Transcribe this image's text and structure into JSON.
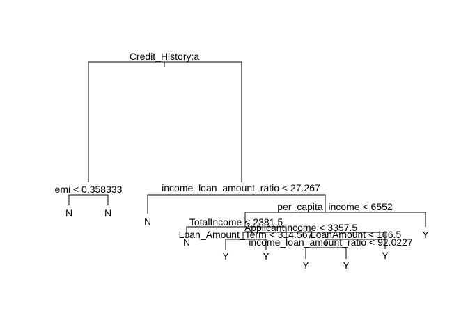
{
  "tree": {
    "splits": {
      "root": "Credit_History:a",
      "emi": "emi < 0.358333",
      "income_ratio_1": "income_loan_amount_ratio < 27.267",
      "per_capita": "per_capita_income < 6552",
      "total_income": "TotalIncome < 2381.5",
      "applicant_income": "ApplicantIncome < 3357.5",
      "loan_term": "Loan_Amount_Term < 314.567",
      "loan_amount": "LoanAmount < 106.5",
      "income_ratio_2": "income_loan_amount_ratio < 92.0227"
    },
    "leaves": {
      "emi_left": "N",
      "emi_right": "N",
      "ratio_left": "N",
      "total_left": "N",
      "term_left": "Y",
      "term_right": "Y",
      "ratio2_left": "Y",
      "ratio2_right": "Y",
      "loanamt_right": "Y",
      "per_capita_right": "Y"
    }
  }
}
